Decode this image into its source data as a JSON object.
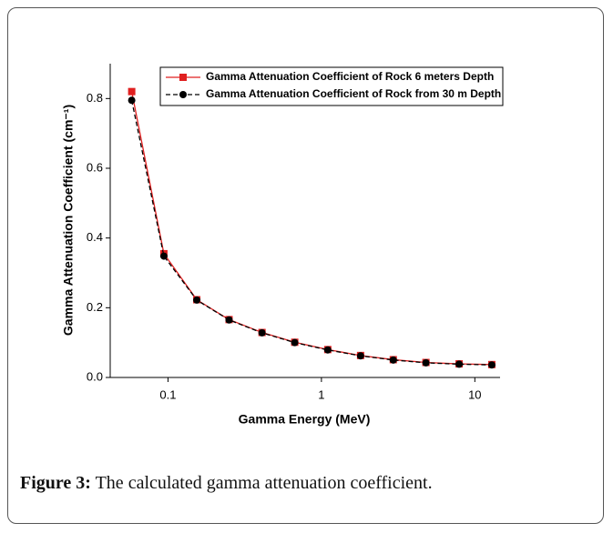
{
  "chart_data": {
    "type": "line",
    "xlabel": "Gamma Energy (MeV)",
    "ylabel": "Gamma Attenuation Coefficient (cm⁻¹)",
    "x": [
      0.058,
      0.094,
      0.154,
      0.25,
      0.41,
      0.67,
      1.1,
      1.8,
      2.94,
      4.8,
      7.9,
      12.9
    ],
    "series": [
      {
        "name": "Gamma Attenuation Coefficient of Rock 6 meters Depth",
        "color": "#e02020",
        "marker": "square",
        "dash": false,
        "values": [
          0.82,
          0.355,
          0.223,
          0.166,
          0.129,
          0.101,
          0.08,
          0.063,
          0.051,
          0.043,
          0.039,
          0.037
        ]
      },
      {
        "name": "Gamma Attenuation Coefficient of Rock from 30 m Depth",
        "color": "#000000",
        "marker": "circle",
        "dash": true,
        "values": [
          0.795,
          0.348,
          0.222,
          0.165,
          0.128,
          0.1,
          0.079,
          0.062,
          0.05,
          0.042,
          0.038,
          0.036
        ]
      }
    ],
    "xscale": "log",
    "xlim": [
      0.042,
      14.6
    ],
    "xticks": [
      0.1,
      1,
      10
    ],
    "ylim": [
      0,
      0.9
    ],
    "yticks": [
      {
        "value": 0,
        "label": "0.0"
      },
      0.2,
      0.4,
      0.6,
      0.8
    ],
    "legend": "upper right"
  },
  "caption": {
    "label": "Figure 3:",
    "text": "The calculated gamma attenuation coefficient."
  }
}
